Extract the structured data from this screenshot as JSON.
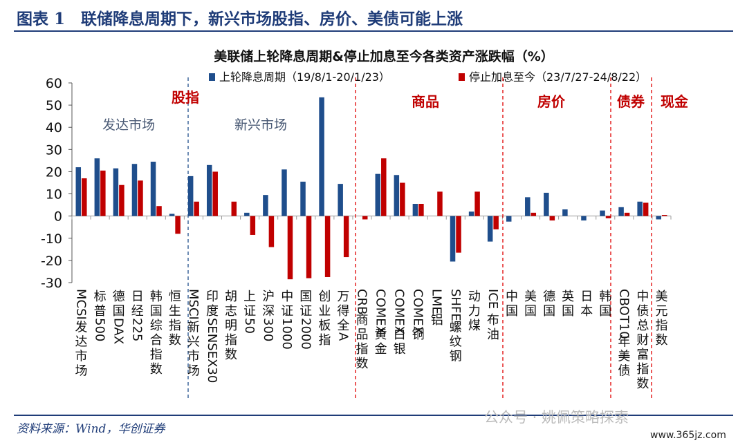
{
  "figure": {
    "title": "图表 1　联储降息周期下，新兴市场股指、房价、美债可能上涨",
    "source": "资料来源：Wind，华创证券",
    "watermark": "公众号 · 姚佩策略探索",
    "site": "www.365jz.com"
  },
  "chart_data": {
    "type": "bar",
    "title": "美联储上轮降息周期&停止加息至今各类资产涨跌幅（%）",
    "ylim": [
      -30,
      60
    ],
    "yticks": [
      60,
      50,
      40,
      30,
      20,
      10,
      0,
      -10,
      -20,
      -30
    ],
    "legend_position": "top",
    "series": [
      {
        "name": "上轮降息周期（19/8/1-20/1/23）",
        "color": "#1f4e8c",
        "values": [
          22,
          26,
          21.5,
          23.5,
          24.5,
          1,
          18,
          23,
          0,
          1.5,
          9.5,
          21,
          15.5,
          53.5,
          14.5,
          0,
          19,
          18.5,
          5.5,
          0,
          -20.5,
          2,
          -11.5,
          -2.5,
          8.5,
          10.5,
          3,
          -2,
          2.5,
          4,
          6.5,
          -1.5
        ]
      },
      {
        "name": "停止加息至今（23/7/27-24/8/22）",
        "color": "#c00000",
        "values": [
          17,
          20.5,
          14,
          16,
          4.5,
          -8,
          6.5,
          20,
          6.5,
          -8.5,
          -14,
          -28.5,
          -28,
          -27.5,
          -18.5,
          -1.5,
          26,
          15,
          5.5,
          11,
          -16.5,
          11,
          -6,
          0,
          1.5,
          -2,
          0,
          0,
          -1,
          1.5,
          6,
          0.5
        ]
      }
    ],
    "categories": [
      "MCSI发达市场",
      "标普500",
      "德国DAX",
      "日经225",
      "韩国综合指数",
      "恒生指数",
      "MSCI新兴市场",
      "印度SENSEX30",
      "胡志明指数",
      "上证50",
      "沪深300",
      "中证1000",
      "国证2000",
      "创业板指",
      "万得全A",
      "CRB商品指数",
      "COMEX黄金",
      "COMEX白银",
      "COMEX铜",
      "LME铝",
      "SHFE螺纹钢",
      "动力煤",
      "ICE布油",
      "中国",
      "美国",
      "德国",
      "英国",
      "日本",
      "韩国",
      "CBOT10年美债",
      "中债总财富指数",
      "美元指数"
    ],
    "group_labels": [
      "股指",
      "商品",
      "房价",
      "债券",
      "现金"
    ],
    "subgroup_labels": [
      "发达市场",
      "新兴市场"
    ]
  }
}
